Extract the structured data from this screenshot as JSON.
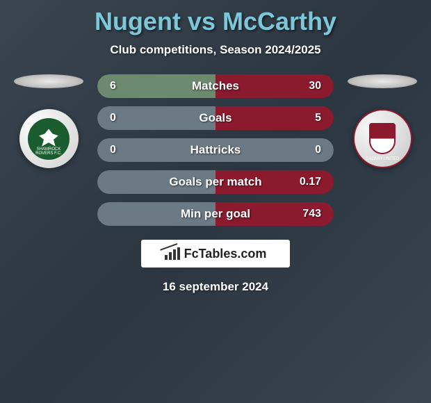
{
  "header": {
    "title": "Nugent vs McCarthy",
    "subtitle": "Club competitions, Season 2024/2025",
    "title_color": "#7cc8d8",
    "subtitle_color": "#ffffff"
  },
  "players": {
    "left": {
      "name": "Nugent",
      "club_hint": "SHAMROCK ROVERS F.C."
    },
    "right": {
      "name": "McCarthy",
      "club_hint": "GALWAY UNITED"
    }
  },
  "colors": {
    "left_primary": "#2d9b4a",
    "left_secondary": "#6b8a6f",
    "right_primary": "#8b1a2e",
    "right_secondary": "#a85560",
    "neutral": "#6b7a85",
    "bar_label": "#ffffff"
  },
  "stats": [
    {
      "label": "Matches",
      "left_val": "6",
      "right_val": "30",
      "left_color": "#6b8a6f",
      "right_color": "#8b1a2e"
    },
    {
      "label": "Goals",
      "left_val": "0",
      "right_val": "5",
      "left_color": "#6b7a85",
      "right_color": "#8b1a2e"
    },
    {
      "label": "Hattricks",
      "left_val": "0",
      "right_val": "0",
      "left_color": "#6b7a85",
      "right_color": "#6b7a85"
    },
    {
      "label": "Goals per match",
      "left_val": "",
      "right_val": "0.17",
      "left_color": "#6b7a85",
      "right_color": "#8b1a2e"
    },
    {
      "label": "Min per goal",
      "left_val": "",
      "right_val": "743",
      "left_color": "#6b7a85",
      "right_color": "#8b1a2e"
    }
  ],
  "branding": {
    "text": "FcTables.com"
  },
  "date": "16 september 2024"
}
